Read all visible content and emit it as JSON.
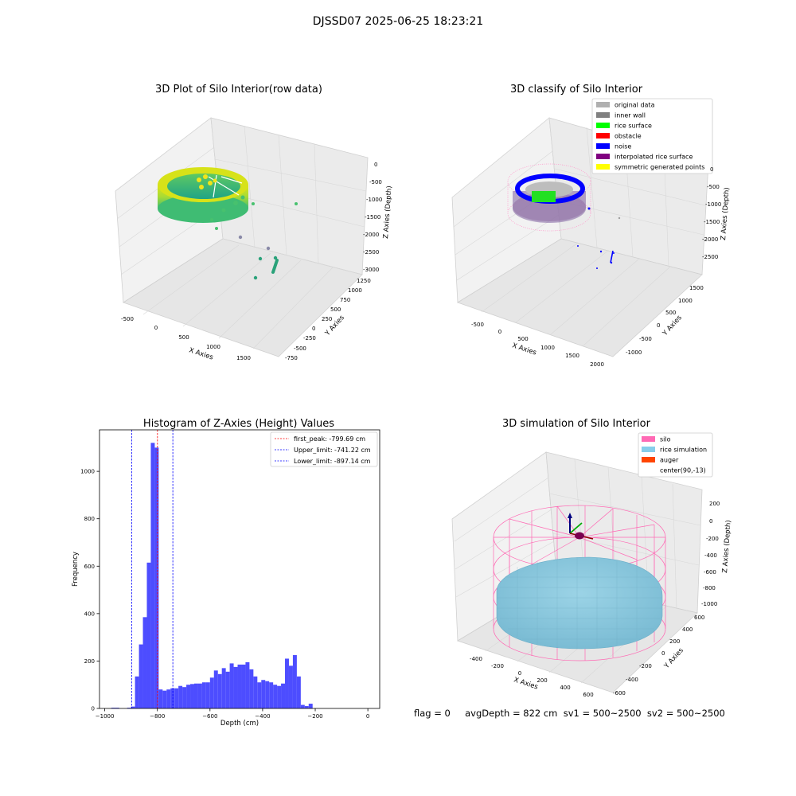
{
  "suptitle": "DJSSD07 2025-06-25 18:23:21",
  "chart_data": [
    {
      "type": "scatter3d",
      "title": "3D Plot of Silo Interior(row data)",
      "xlabel": "X Axies",
      "ylabel": "Y Axies",
      "zlabel": "Z Axies (Depth)",
      "x_ticks": [
        "-500",
        "0",
        "500",
        "1000",
        "1500"
      ],
      "y_ticks": [
        "-750",
        "-500",
        "-250",
        "0",
        "250",
        "500",
        "750",
        "1000",
        "1250"
      ],
      "z_ticks": [
        "0",
        "-500",
        "-1000",
        "-1500",
        "-2000",
        "-2500",
        "-3000"
      ],
      "colormap": "viridis"
    },
    {
      "type": "scatter3d",
      "title": "3D classify of Silo Interior",
      "xlabel": "X Axies",
      "ylabel": "Y Axies",
      "zlabel": "Z Axies (Depth)",
      "x_ticks": [
        "-500",
        "0",
        "500",
        "1000",
        "1500",
        "2000"
      ],
      "y_ticks": [
        "-1000",
        "-500",
        "0",
        "500",
        "1000",
        "1500"
      ],
      "z_ticks": [
        "0",
        "-500",
        "-1000",
        "-1500",
        "-2000",
        "-2500"
      ],
      "legend_position": "top-right",
      "legend": [
        {
          "label": "original data",
          "color": "#b0b0b0"
        },
        {
          "label": "inner wall",
          "color": "#808080"
        },
        {
          "label": "rice surface",
          "color": "#00ff00"
        },
        {
          "label": "obstacle",
          "color": "#ff0000"
        },
        {
          "label": "noise",
          "color": "#0000ff"
        },
        {
          "label": "interpolated rice surface",
          "color": "#800080"
        },
        {
          "label": "symmetric generated points",
          "color": "#ffff00"
        }
      ]
    },
    {
      "type": "bar",
      "title": "Histogram of Z-Axies (Height) Values",
      "xlabel": "Depth (cm)",
      "ylabel": "Frequency",
      "xlim": [
        -1020,
        45
      ],
      "ylim": [
        0,
        1175
      ],
      "x_ticks": [
        -1000,
        -800,
        -600,
        -400,
        -200,
        0
      ],
      "y_ticks": [
        0,
        200,
        400,
        600,
        800,
        1000
      ],
      "bar_color": "#4d4dff",
      "bin_edges_start": -975,
      "bin_width": 15,
      "values": [
        3,
        3,
        0,
        0,
        3,
        8,
        135,
        270,
        385,
        615,
        1120,
        1100,
        80,
        75,
        80,
        85,
        85,
        95,
        90,
        100,
        103,
        105,
        105,
        110,
        110,
        130,
        160,
        145,
        170,
        155,
        190,
        175,
        185,
        185,
        195,
        165,
        135,
        110,
        120,
        115,
        110,
        100,
        95,
        105,
        210,
        180,
        225,
        135,
        15,
        10,
        20
      ],
      "lines": [
        {
          "label": "first_peak: -799.69 cm",
          "x": -799.69,
          "color": "#ff0000"
        },
        {
          "label": "Upper_limit: -741.22 cm",
          "x": -741.22,
          "color": "#0000ff"
        },
        {
          "label": "Lower_limit: -897.14 cm",
          "x": -897.14,
          "color": "#0000ff"
        }
      ],
      "legend_position": "top-right"
    },
    {
      "type": "surface3d",
      "title": "3D simulation of Silo Interior",
      "xlabel": "X Axies",
      "ylabel": "Y Axies",
      "zlabel": "Z Axies (Depth)",
      "x_ticks": [
        "-400",
        "-200",
        "0",
        "200",
        "400",
        "600"
      ],
      "y_ticks": [
        "-600",
        "-400",
        "-200",
        "0",
        "200",
        "400",
        "600"
      ],
      "z_ticks": [
        "200",
        "0",
        "-200",
        "-400",
        "-600",
        "-800",
        "-1000"
      ],
      "legend_position": "top-right",
      "legend": [
        {
          "label": "silo",
          "color": "#ff69b4"
        },
        {
          "label": "rice simulation",
          "color": "#87ceeb"
        },
        {
          "label": "auger",
          "color": "#ff4500"
        },
        {
          "label": "center(90,-13)",
          "color": "#ffffff"
        }
      ]
    }
  ],
  "footer": {
    "text": "flag = 0     avgDepth = 822 cm  sv1 = 500~2500  sv2 = 500~2500"
  }
}
